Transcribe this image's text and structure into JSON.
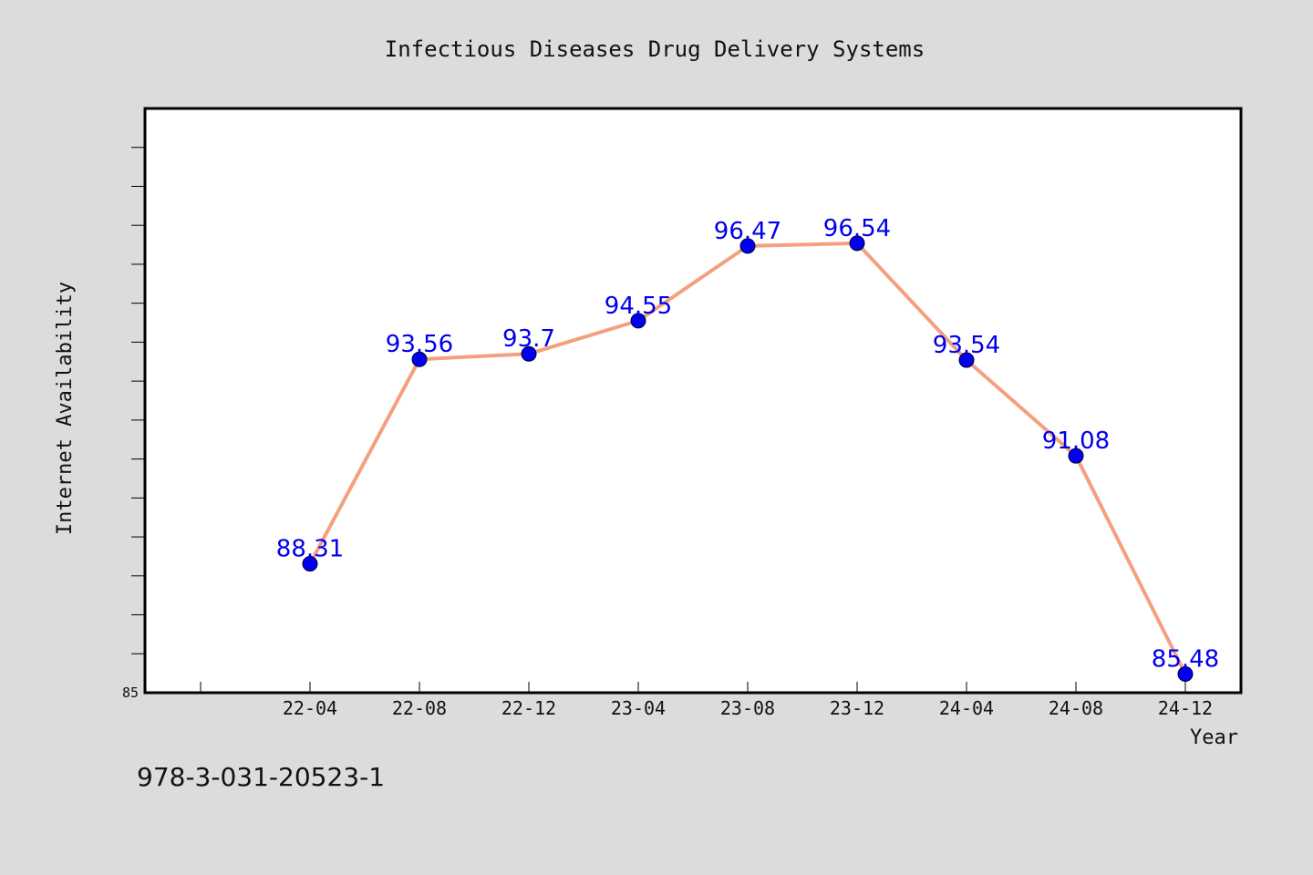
{
  "chart_data": {
    "type": "line",
    "title": "Infectious Diseases Drug Delivery Systems",
    "xlabel": "Year",
    "ylabel": "Internet Availability",
    "categories": [
      "22-04",
      "22-08",
      "22-12",
      "23-04",
      "23-08",
      "23-12",
      "24-04",
      "24-08",
      "24-12"
    ],
    "series": [
      {
        "name": "",
        "values": [
          88.31,
          93.56,
          93.7,
          94.55,
          96.47,
          96.54,
          93.54,
          91.08,
          85.48
        ]
      }
    ],
    "data_labels": [
      "88.31",
      "93.56",
      "93.7",
      "94.55",
      "96.47",
      "96.54",
      "93.54",
      "91.08",
      "85.48"
    ],
    "ylim": [
      85,
      100
    ],
    "ytick_labels": [
      "85"
    ],
    "grid": false,
    "legend": "none",
    "colors": {
      "line": "#f4a07e",
      "marker": "#0000ee",
      "label": "#0000ee",
      "background": "#dcdcdc",
      "plot_background": "#ffffff"
    }
  },
  "footnote": "978-3-031-20523-1"
}
